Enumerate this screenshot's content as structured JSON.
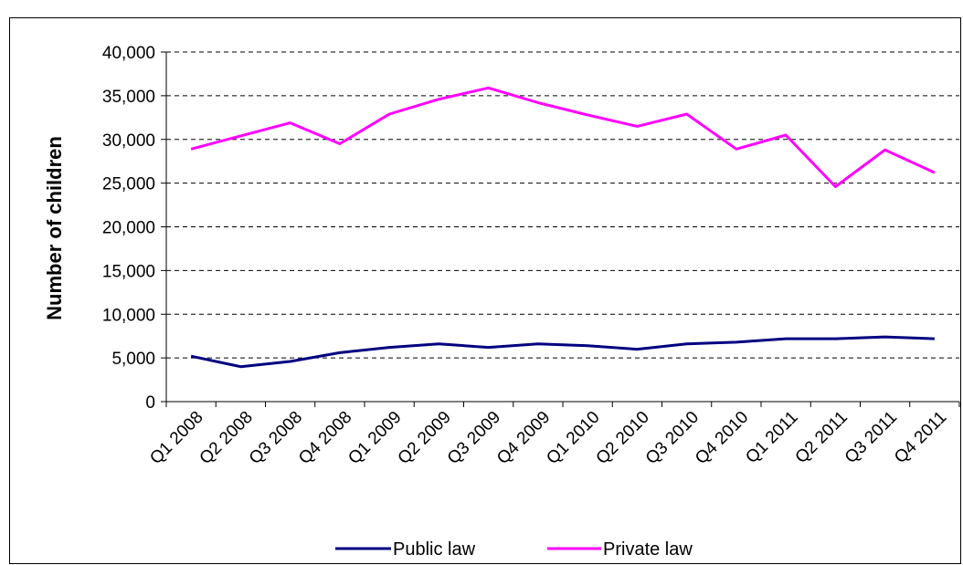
{
  "chart_data": {
    "type": "line",
    "title": "",
    "xlabel": "",
    "ylabel": "Number of children",
    "categories": [
      "Q1 2008",
      "Q2 2008",
      "Q3 2008",
      "Q4 2008",
      "Q1 2009",
      "Q2 2009",
      "Q3 2009",
      "Q4 2009",
      "Q1 2010",
      "Q2 2010",
      "Q3 2010",
      "Q4 2010",
      "Q1 2011",
      "Q2 2011",
      "Q3 2011",
      "Q4 2011"
    ],
    "ylim": [
      0,
      40000
    ],
    "yticks": [
      0,
      5000,
      10000,
      15000,
      20000,
      25000,
      30000,
      35000,
      40000
    ],
    "ytick_labels": [
      "0",
      "5,000",
      "10,000",
      "15,000",
      "20,000",
      "25,000",
      "30,000",
      "35,000",
      "40,000"
    ],
    "grid": "horizontal dashed",
    "legend_position": "bottom",
    "series": [
      {
        "name": "Public law",
        "color": "#000080",
        "values": [
          5200,
          4000,
          4600,
          5600,
          6200,
          6600,
          6200,
          6600,
          6400,
          6000,
          6600,
          6800,
          7200,
          7200,
          7400,
          7200
        ]
      },
      {
        "name": "Private law",
        "color": "#ff00ff",
        "values": [
          28900,
          30400,
          31900,
          29500,
          32900,
          34600,
          35900,
          34200,
          32800,
          31500,
          32900,
          28900,
          30500,
          24600,
          28800,
          26200
        ]
      }
    ]
  }
}
